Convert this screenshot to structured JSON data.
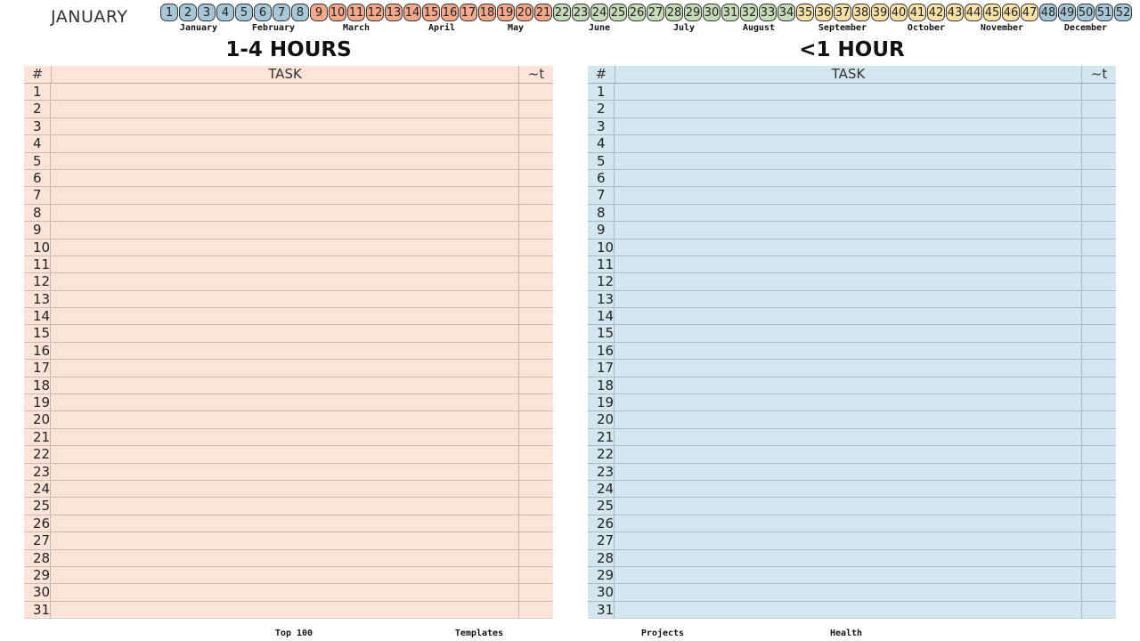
{
  "header": {
    "month_title": "JANUARY"
  },
  "weeks": [
    {
      "n": "1",
      "color": "#a7c7d6"
    },
    {
      "n": "2",
      "color": "#a7c7d6"
    },
    {
      "n": "3",
      "color": "#a7c7d6"
    },
    {
      "n": "4",
      "color": "#a7c7d6"
    },
    {
      "n": "5",
      "color": "#a7c7d6"
    },
    {
      "n": "6",
      "color": "#a7c7d6"
    },
    {
      "n": "7",
      "color": "#a7c7d6"
    },
    {
      "n": "8",
      "color": "#a7c7d6"
    },
    {
      "n": "9",
      "color": "#f3a98b"
    },
    {
      "n": "10",
      "color": "#f3a98b"
    },
    {
      "n": "11",
      "color": "#f3a98b"
    },
    {
      "n": "12",
      "color": "#f3a98b"
    },
    {
      "n": "13",
      "color": "#f3a98b"
    },
    {
      "n": "14",
      "color": "#f3a98b"
    },
    {
      "n": "15",
      "color": "#f3a98b"
    },
    {
      "n": "16",
      "color": "#f3a98b"
    },
    {
      "n": "17",
      "color": "#f3a98b"
    },
    {
      "n": "18",
      "color": "#f3a98b"
    },
    {
      "n": "19",
      "color": "#f3a98b"
    },
    {
      "n": "20",
      "color": "#f3a98b"
    },
    {
      "n": "21",
      "color": "#f3a98b"
    },
    {
      "n": "22",
      "color": "#c6dbb9"
    },
    {
      "n": "23",
      "color": "#c6dbb9"
    },
    {
      "n": "24",
      "color": "#c6dbb9"
    },
    {
      "n": "25",
      "color": "#c6dbb9"
    },
    {
      "n": "26",
      "color": "#c6dbb9"
    },
    {
      "n": "27",
      "color": "#c6dbb9"
    },
    {
      "n": "28",
      "color": "#c6dbb9"
    },
    {
      "n": "29",
      "color": "#c6dbb9"
    },
    {
      "n": "30",
      "color": "#c6dbb9"
    },
    {
      "n": "31",
      "color": "#c6dbb9"
    },
    {
      "n": "32",
      "color": "#c6dbb9"
    },
    {
      "n": "33",
      "color": "#c6dbb9"
    },
    {
      "n": "34",
      "color": "#c6dbb9"
    },
    {
      "n": "35",
      "color": "#f9e2a7"
    },
    {
      "n": "36",
      "color": "#f9e2a7"
    },
    {
      "n": "37",
      "color": "#f9e2a7"
    },
    {
      "n": "38",
      "color": "#f9e2a7"
    },
    {
      "n": "39",
      "color": "#f9e2a7"
    },
    {
      "n": "40",
      "color": "#f9e2a7"
    },
    {
      "n": "41",
      "color": "#f9e2a7"
    },
    {
      "n": "42",
      "color": "#f9e2a7"
    },
    {
      "n": "43",
      "color": "#f9e2a7"
    },
    {
      "n": "44",
      "color": "#f9e2a7"
    },
    {
      "n": "45",
      "color": "#f9e2a7"
    },
    {
      "n": "46",
      "color": "#f9e2a7"
    },
    {
      "n": "47",
      "color": "#f9e2a7"
    },
    {
      "n": "48",
      "color": "#a7c7d6"
    },
    {
      "n": "49",
      "color": "#a7c7d6"
    },
    {
      "n": "50",
      "color": "#a7c7d6"
    },
    {
      "n": "51",
      "color": "#a7c7d6"
    },
    {
      "n": "52",
      "color": "#a7c7d6"
    }
  ],
  "months": [
    "January",
    "February",
    "March",
    "April",
    "May",
    "June",
    "July",
    "August",
    "September",
    "October",
    "November",
    "December"
  ],
  "sections": {
    "long": {
      "title": "1-4 HOURS",
      "col_num": "#",
      "col_task": "TASK",
      "col_time": "~t",
      "bg": "#fde3d8"
    },
    "short": {
      "title": "<1 HOUR",
      "col_num": "#",
      "col_task": "TASK",
      "col_time": "~t",
      "bg": "#d4e6ee"
    }
  },
  "row_numbers": [
    "1",
    "2",
    "3",
    "4",
    "5",
    "6",
    "7",
    "8",
    "9",
    "10",
    "11",
    "12",
    "13",
    "14",
    "15",
    "16",
    "17",
    "18",
    "19",
    "20",
    "21",
    "22",
    "23",
    "24",
    "25",
    "26",
    "27",
    "28",
    "29",
    "30",
    "31"
  ],
  "footer_nav": [
    "Top 100",
    "Templates",
    "Projects",
    "Health"
  ]
}
